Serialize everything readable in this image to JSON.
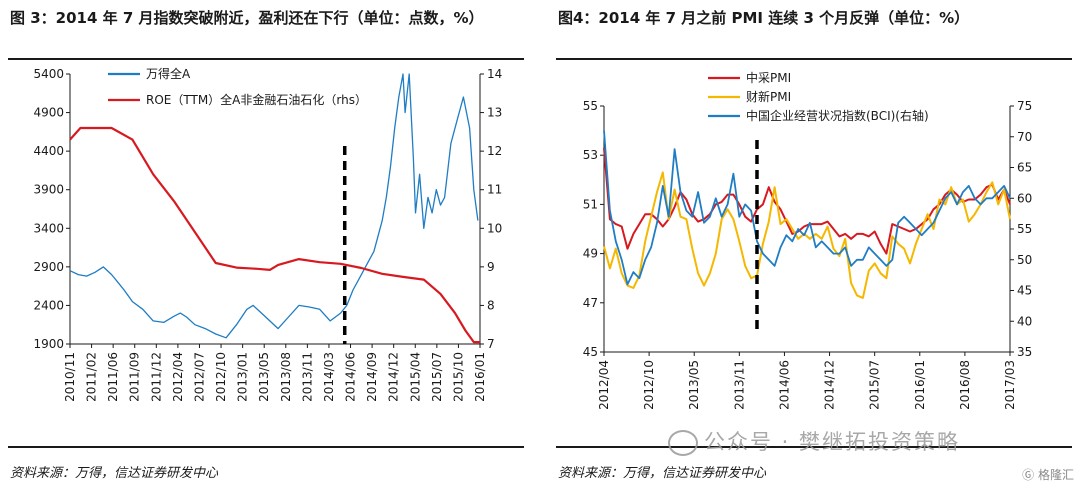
{
  "left": {
    "title": "图 3：2014 年 7 月指数突破附近，盈利还在下行（单位：点数，%）",
    "source": "资料来源：万得，信达证券研发中心"
  },
  "right": {
    "title": "图4：2014 年 7 月之前 PMI 连续 3 个月反弹（单位：%）",
    "source": "资料来源：万得，信达证券研发中心"
  },
  "watermark": "公众号 · 樊继拓投资策略",
  "logo_text": "格隆汇",
  "colors": {
    "blue": "#1f7dc4",
    "red": "#d71920",
    "yellow": "#f5b800",
    "axis": "#1a1a1a"
  },
  "chart_data": [
    {
      "type": "line",
      "title": "图 3：2014 年 7 月指数突破附近，盈利还在下行（单位：点数，%）",
      "xlabel": "",
      "ylabel": "",
      "x_ticks": [
        "2010/11",
        "2011/02",
        "2011/06",
        "2011/09",
        "2011/12",
        "2012/04",
        "2012/07",
        "2012/10",
        "2013/01",
        "2013/05",
        "2013/08",
        "2013/11",
        "2014/03",
        "2014/06",
        "2014/09",
        "2014/12",
        "2015/04",
        "2015/07",
        "2015/10",
        "2016/01"
      ],
      "ylim_left": [
        1900,
        5400
      ],
      "y_ticks_left": [
        "1900",
        "2400",
        "2900",
        "3400",
        "3900",
        "4400",
        "4900",
        "5400"
      ],
      "ylim_right": [
        7,
        14
      ],
      "y_ticks_right": [
        "7",
        "8",
        "9",
        "10",
        "11",
        "12",
        "13",
        "14"
      ],
      "marker_line_x": 13.2,
      "series": [
        {
          "name": "万得全A",
          "axis": "left",
          "color": "#1f7dc4",
          "x": [
            0,
            0.4,
            0.8,
            1.2,
            1.6,
            2,
            2.3,
            2.6,
            3,
            3.5,
            4,
            4.5,
            5,
            5.3,
            5.6,
            6,
            6.5,
            7,
            7.5,
            8,
            8.5,
            8.8,
            9.2,
            9.6,
            10,
            10.5,
            11,
            11.5,
            12,
            12.5,
            13,
            13.3,
            13.6,
            13.9,
            14.2,
            14.6,
            15,
            15.2,
            15.4,
            15.6,
            15.8,
            16,
            16.1,
            16.3,
            16.5,
            16.6,
            16.8,
            17,
            17.2,
            17.4,
            17.6,
            17.8,
            18,
            18.3,
            18.6,
            18.9,
            19.2,
            19.4,
            19.6
          ],
          "values": [
            2850,
            2800,
            2780,
            2830,
            2900,
            2800,
            2700,
            2600,
            2450,
            2350,
            2200,
            2180,
            2260,
            2300,
            2250,
            2150,
            2100,
            2030,
            1980,
            2150,
            2350,
            2400,
            2300,
            2200,
            2100,
            2250,
            2400,
            2380,
            2350,
            2200,
            2300,
            2400,
            2600,
            2750,
            2900,
            3100,
            3500,
            3800,
            4200,
            4700,
            5100,
            5400,
            4900,
            5400,
            4300,
            3600,
            4100,
            3400,
            3800,
            3600,
            3900,
            3700,
            3800,
            4500,
            4800,
            5100,
            4700,
            3900,
            3500
          ]
        },
        {
          "name": "ROE（TTM）全A非金融石油石化（rhs）",
          "axis": "right",
          "color": "#d71920",
          "x": [
            0,
            0.5,
            1,
            1.5,
            2,
            3,
            4,
            5,
            6,
            7,
            8,
            9,
            9.6,
            10,
            11,
            12,
            13,
            14,
            15,
            16,
            17,
            17.8,
            18.5,
            19,
            19.4,
            19.7
          ],
          "values": [
            12.3,
            12.6,
            12.6,
            12.6,
            12.6,
            12.3,
            11.4,
            10.7,
            9.9,
            9.1,
            8.98,
            8.95,
            8.92,
            9.05,
            9.2,
            9.12,
            9.08,
            8.97,
            8.82,
            8.74,
            8.67,
            8.3,
            7.8,
            7.35,
            7.05,
            7.05
          ]
        }
      ]
    },
    {
      "type": "line",
      "title": "图4：2014 年 7 月之前 PMI 连续 3 个月反弹（单位：%）",
      "xlabel": "",
      "ylabel": "",
      "x_ticks": [
        "2012/04",
        "2012/10",
        "2013/05",
        "2013/11",
        "2014/06",
        "2014/12",
        "2015/07",
        "2016/01",
        "2016/08",
        "2017/03"
      ],
      "ylim_left": [
        45,
        55
      ],
      "y_ticks_left": [
        "45",
        "47",
        "49",
        "51",
        "53",
        "55"
      ],
      "ylim_right": [
        35,
        75
      ],
      "y_ticks_right": [
        "35",
        "40",
        "45",
        "50",
        "55",
        "60",
        "65",
        "70",
        "75"
      ],
      "marker_line_x": 26,
      "series": [
        {
          "name": "中采PMI",
          "axis": "left",
          "color": "#d71920",
          "x": [
            0,
            1,
            2,
            3,
            4,
            5,
            6,
            7,
            8,
            9,
            10,
            11,
            12,
            13,
            14,
            15,
            16,
            17,
            18,
            19,
            20,
            21,
            22,
            23,
            24,
            25,
            26,
            27,
            28,
            29,
            30,
            31,
            32,
            33,
            34,
            35,
            36,
            37,
            38,
            39,
            40,
            41,
            42,
            43,
            44,
            45,
            46,
            47,
            48,
            49,
            50,
            51,
            52,
            53,
            54,
            55,
            56,
            57,
            58,
            59,
            60,
            61,
            62,
            63,
            64,
            65,
            66,
            67,
            68,
            69
          ],
          "values": [
            53.3,
            50.4,
            50.2,
            50.1,
            49.2,
            49.8,
            50.2,
            50.6,
            50.6,
            50.4,
            50.1,
            50.4,
            50.9,
            51.5,
            51.2,
            50.6,
            50.3,
            50.4,
            50.6,
            51.0,
            51.1,
            51.4,
            51.4,
            51.0,
            50.5,
            50.3,
            50.8,
            51.0,
            51.7,
            51.1,
            50.8,
            50.3,
            49.8,
            49.9,
            50.1,
            50.2,
            50.2,
            50.2,
            50.3,
            50.0,
            49.7,
            49.8,
            49.6,
            49.8,
            49.8,
            49.7,
            49.9,
            49.4,
            49.0,
            50.2,
            50.1,
            50.0,
            49.9,
            50.0,
            50.2,
            50.4,
            50.8,
            51.0,
            51.4,
            51.6,
            51.4,
            51.1,
            51.2,
            51.2,
            51.4,
            51.7,
            51.8,
            51.2,
            51.6,
            51.0
          ]
        },
        {
          "name": "财新PMI",
          "axis": "left",
          "color": "#f5b800",
          "x": [
            0,
            1,
            2,
            3,
            4,
            5,
            6,
            7,
            8,
            9,
            10,
            11,
            12,
            13,
            14,
            15,
            16,
            17,
            18,
            19,
            20,
            21,
            22,
            23,
            24,
            25,
            26,
            27,
            28,
            29,
            30,
            31,
            32,
            33,
            34,
            35,
            36,
            37,
            38,
            39,
            40,
            41,
            42,
            43,
            44,
            45,
            46,
            47,
            48,
            49,
            50,
            51,
            52,
            53,
            54,
            55,
            56,
            57,
            58,
            59,
            60,
            61,
            62,
            63,
            64,
            65,
            66,
            67,
            68,
            69
          ],
          "values": [
            49.3,
            48.4,
            49.2,
            48.2,
            47.7,
            47.6,
            48.1,
            49.5,
            50.5,
            51.5,
            52.3,
            50.4,
            51.6,
            50.5,
            50.4,
            49.2,
            48.2,
            47.7,
            48.2,
            49.0,
            50.4,
            50.8,
            50.4,
            49.5,
            48.5,
            48.0,
            48.1,
            49.4,
            50.3,
            51.7,
            50.2,
            50.4,
            50.0,
            49.6,
            49.8,
            49.6,
            49.8,
            49.6,
            50.1,
            49.2,
            48.9,
            49.6,
            47.8,
            47.3,
            47.2,
            48.3,
            48.6,
            48.2,
            48.0,
            49.7,
            49.4,
            49.2,
            48.6,
            49.4,
            50.0,
            50.6,
            50.0,
            51.2,
            51.0,
            51.7,
            51.0,
            51.2,
            50.3,
            50.6,
            51.0,
            51.5,
            51.9,
            51.0,
            51.6,
            50.4
          ]
        },
        {
          "name": "中国企业经营状况指数(BCI)(右轴)",
          "axis": "right",
          "color": "#1f7dc4",
          "x": [
            0,
            1,
            2,
            3,
            4,
            5,
            6,
            7,
            8,
            9,
            10,
            11,
            12,
            13,
            14,
            15,
            16,
            17,
            18,
            19,
            20,
            21,
            22,
            23,
            24,
            25,
            26,
            27,
            28,
            29,
            30,
            31,
            32,
            33,
            34,
            35,
            36,
            37,
            38,
            39,
            40,
            41,
            42,
            43,
            44,
            45,
            46,
            47,
            48,
            49,
            50,
            51,
            52,
            53,
            54,
            55,
            56,
            57,
            58,
            59,
            60,
            61,
            62,
            63,
            64,
            65,
            66,
            67,
            68,
            69
          ],
          "values": [
            71,
            58,
            53,
            50,
            46,
            48,
            47,
            50,
            52,
            56,
            62,
            57,
            68,
            61,
            58,
            57,
            61,
            56,
            57,
            60,
            57,
            59,
            64,
            57,
            59,
            58,
            53,
            51,
            50,
            49,
            52,
            54,
            53,
            55,
            54,
            56,
            52,
            53,
            52,
            51,
            51,
            52,
            49,
            50,
            50,
            52,
            51,
            50,
            49,
            50,
            56,
            57,
            56,
            55,
            54,
            55,
            56,
            58,
            60,
            61,
            59,
            61,
            62,
            60,
            59,
            60,
            60,
            61,
            62,
            60
          ]
        }
      ]
    }
  ]
}
